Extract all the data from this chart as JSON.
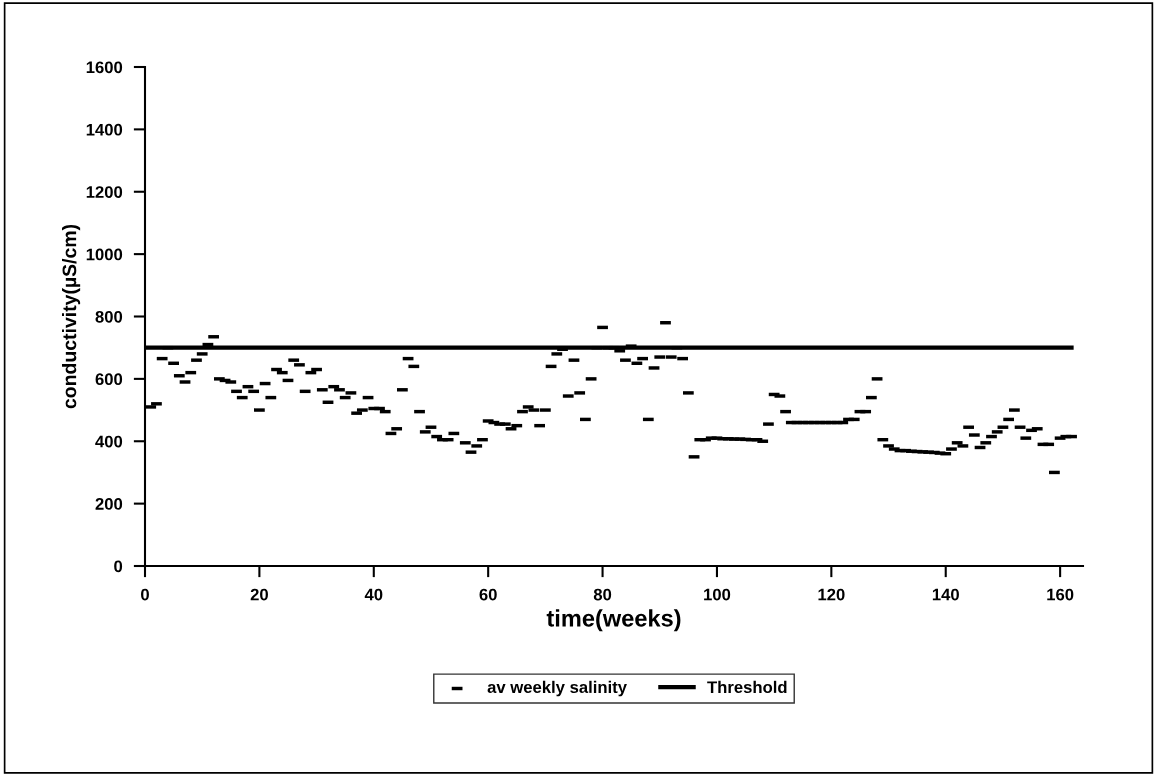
{
  "chart_data": {
    "type": "scatter",
    "xlabel": "time(weeks)",
    "ylabel": "conductivity(µS/cm)",
    "xlim": [
      0,
      164
    ],
    "xticks": [
      0,
      20,
      40,
      60,
      80,
      100,
      120,
      140,
      160
    ],
    "ylim": [
      0,
      1600
    ],
    "yticks": [
      0,
      200,
      400,
      600,
      800,
      1000,
      1200,
      1400,
      1600
    ],
    "grid": false,
    "legend": "bottom",
    "series": [
      {
        "name": "av weekly salinity",
        "color": "#000000",
        "marker": "square",
        "x": [
          1,
          2,
          3,
          4,
          5,
          6,
          7,
          8,
          9,
          10,
          11,
          12,
          13,
          14,
          15,
          16,
          17,
          18,
          19,
          20,
          21,
          22,
          23,
          24,
          25,
          26,
          27,
          28,
          29,
          30,
          31,
          32,
          33,
          34,
          35,
          36,
          37,
          38,
          39,
          40,
          41,
          42,
          43,
          44,
          45,
          46,
          47,
          48,
          49,
          50,
          51,
          52,
          53,
          54,
          56,
          57,
          58,
          59,
          60,
          61,
          62,
          63,
          64,
          65,
          66,
          67,
          68,
          69,
          70,
          71,
          72,
          73,
          74,
          75,
          76,
          77,
          78,
          79,
          80,
          81,
          82,
          83,
          84,
          85,
          86,
          87,
          88,
          89,
          90,
          91,
          92,
          93,
          94,
          95,
          96,
          97,
          98,
          99,
          100,
          101,
          102,
          103,
          104,
          105,
          106,
          107,
          108,
          109,
          110,
          111,
          112,
          113,
          114,
          115,
          116,
          117,
          118,
          119,
          120,
          121,
          122,
          123,
          124,
          125,
          126,
          127,
          128,
          129,
          130,
          131,
          132,
          133,
          134,
          135,
          136,
          137,
          138,
          139,
          140,
          141,
          142,
          143,
          144,
          145,
          146,
          147,
          148,
          149,
          150,
          151,
          152,
          153,
          154,
          155,
          156,
          157,
          158,
          159,
          160,
          161,
          162
        ],
        "values": [
          510,
          520,
          665,
          700,
          650,
          610,
          590,
          620,
          660,
          680,
          710,
          735,
          600,
          595,
          590,
          560,
          540,
          575,
          560,
          500,
          585,
          540,
          630,
          620,
          595,
          660,
          645,
          560,
          620,
          630,
          565,
          525,
          575,
          565,
          540,
          555,
          490,
          500,
          540,
          505,
          505,
          495,
          425,
          440,
          565,
          665,
          640,
          495,
          430,
          445,
          415,
          405,
          405,
          425,
          395,
          365,
          385,
          405,
          465,
          460,
          455,
          455,
          440,
          450,
          495,
          510,
          500,
          450,
          500,
          640,
          680,
          695,
          545,
          660,
          555,
          470,
          600,
          700,
          765,
          700,
          700,
          690,
          660,
          705,
          650,
          665,
          470,
          635,
          670,
          780,
          670,
          700,
          665,
          555,
          350,
          405,
          405,
          410,
          410,
          408,
          408,
          407,
          407,
          406,
          405,
          405,
          400,
          455,
          550,
          545,
          495,
          460,
          460,
          460,
          460,
          460,
          460,
          460,
          460,
          460,
          460,
          470,
          470,
          495,
          495,
          540,
          600,
          405,
          385,
          375,
          370,
          370,
          368,
          367,
          366,
          365,
          364,
          362,
          360,
          375,
          395,
          385,
          445,
          420,
          380,
          395,
          415,
          430,
          445,
          470,
          500,
          445,
          410,
          435,
          440,
          390,
          390,
          300,
          410,
          415,
          415
        ]
      },
      {
        "name": "Threshold",
        "color": "#000000",
        "type": "line",
        "x": [
          0,
          162
        ],
        "values": [
          700,
          700
        ]
      }
    ]
  }
}
